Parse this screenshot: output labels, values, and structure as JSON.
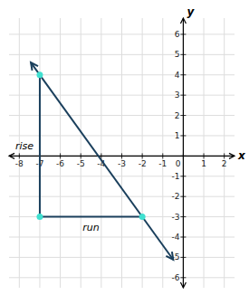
{
  "chart_data": {
    "type": "line",
    "xlabel": "x",
    "ylabel": "y",
    "xlim": [
      -8.5,
      2.5
    ],
    "ylim": [
      -6.5,
      6.8
    ],
    "xticks": [
      -8,
      -7,
      -6,
      -5,
      -4,
      -3,
      -2,
      -1,
      0,
      1,
      2
    ],
    "yticks": [
      -6,
      -5,
      -4,
      -3,
      -2,
      -1,
      0,
      1,
      2,
      3,
      4,
      5,
      6
    ],
    "grid": true,
    "series": [
      {
        "type": "line",
        "color": "#1a3f5c",
        "x": [
          -7,
          -2
        ],
        "values": [
          4,
          -3
        ]
      },
      {
        "type": "line",
        "color": "#1a3f5c",
        "x": [
          -7,
          -7,
          -2
        ],
        "values": [
          4,
          -3,
          -3
        ]
      },
      {
        "type": "scatter",
        "color": "#40e0d0",
        "x": [
          -7,
          -2,
          -7
        ],
        "values": [
          4,
          -3,
          -3
        ]
      }
    ],
    "annotations": [
      {
        "text": "rise"
      },
      {
        "text": "run"
      }
    ]
  }
}
